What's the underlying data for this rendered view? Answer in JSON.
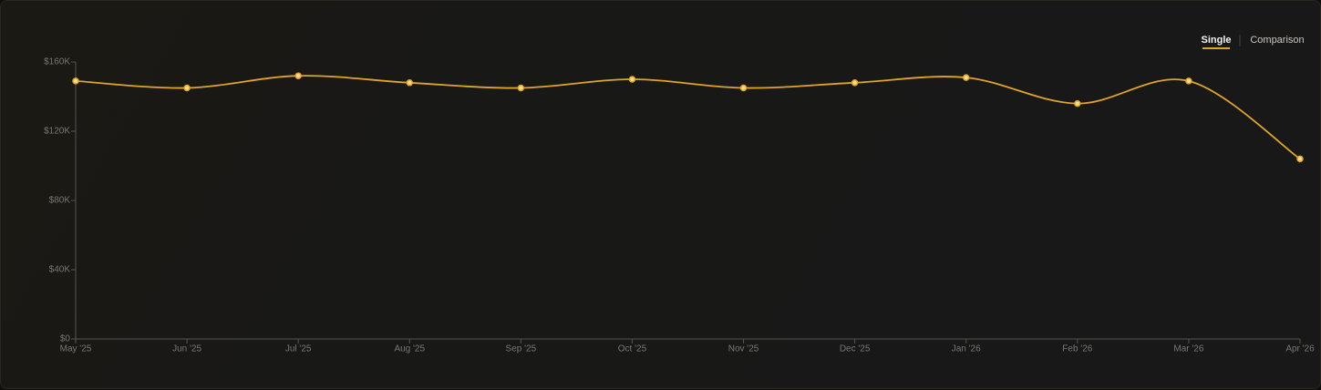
{
  "toggle": [
    "Single",
    "Comparison"
  ],
  "chart_data": {
    "type": "line",
    "categories": [
      "May '25",
      "Jun '25",
      "Jul '25",
      "Aug '25",
      "Sep '25",
      "Oct '25",
      "Nov '25",
      "Dec '25",
      "Jan '26",
      "Feb '26",
      "Mar '26",
      "Apr '26"
    ],
    "values": [
      149000,
      145000,
      152000,
      148000,
      145000,
      150000,
      145000,
      148000,
      151000,
      136000,
      149000,
      104000
    ],
    "color": "#e0a526",
    "ylim": [
      0,
      160000
    ],
    "yticks": [
      {
        "value": 0,
        "label": "$0"
      },
      {
        "value": 40000,
        "label": "$40K"
      },
      {
        "value": 80000,
        "label": "$80K"
      },
      {
        "value": 120000,
        "label": "$120K"
      },
      {
        "value": 160000,
        "label": "$160K"
      }
    ]
  }
}
